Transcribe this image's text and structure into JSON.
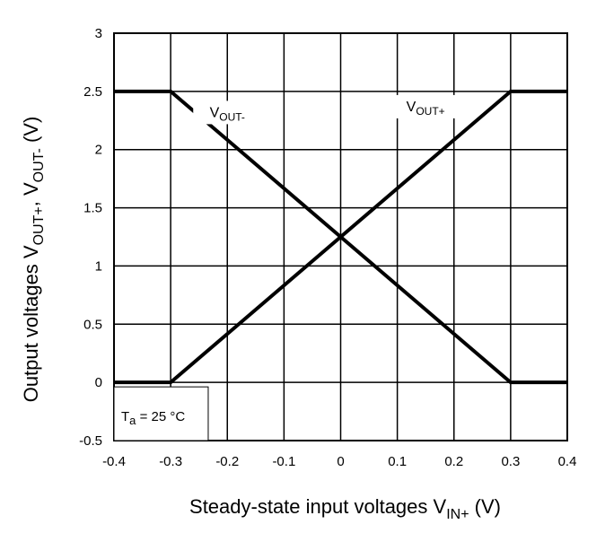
{
  "chart_data": {
    "type": "line",
    "xlabel": {
      "main": "Steady-state input voltages  V",
      "sub": "IN+",
      "unit": "  (V)"
    },
    "ylabel": {
      "main": "Output voltages  V",
      "sub1": "OUT+",
      "mid": ",  V",
      "sub2": "OUT-",
      "unit": "  (V)"
    },
    "xlim": [
      -0.4,
      0.4
    ],
    "ylim": [
      -0.5,
      3
    ],
    "xticks": [
      -0.4,
      -0.3,
      -0.2,
      -0.1,
      0,
      0.1,
      0.2,
      0.3,
      0.4
    ],
    "xtick_labels": [
      "-0.4",
      "-0.3",
      "-0.2",
      "-0.1",
      "0",
      "0.1",
      "0.2",
      "0.3",
      "0.4"
    ],
    "yticks": [
      -0.5,
      0,
      0.5,
      1,
      1.5,
      2,
      2.5,
      3
    ],
    "ytick_labels": [
      "-0.5",
      "0",
      "0.5",
      "1",
      "1.5",
      "2",
      "2.5",
      "3"
    ],
    "grid": true,
    "series": [
      {
        "key": "vout-minus",
        "label_main": "V",
        "label_sub": "OUT-",
        "x": [
          -0.4,
          -0.3,
          0.3,
          0.4
        ],
        "y": [
          2.5,
          2.5,
          0,
          0
        ],
        "label_at": [
          -0.2,
          2.28
        ]
      },
      {
        "key": "vout-plus",
        "label_main": "V",
        "label_sub": "OUT+",
        "x": [
          -0.4,
          -0.3,
          0.3,
          0.4
        ],
        "y": [
          0,
          0,
          2.5,
          2.5
        ],
        "label_at": [
          0.15,
          2.33
        ]
      }
    ],
    "annotation": {
      "main": "T",
      "sub": "a",
      "rest": " = 25 °C"
    },
    "line_color": "#000000"
  }
}
